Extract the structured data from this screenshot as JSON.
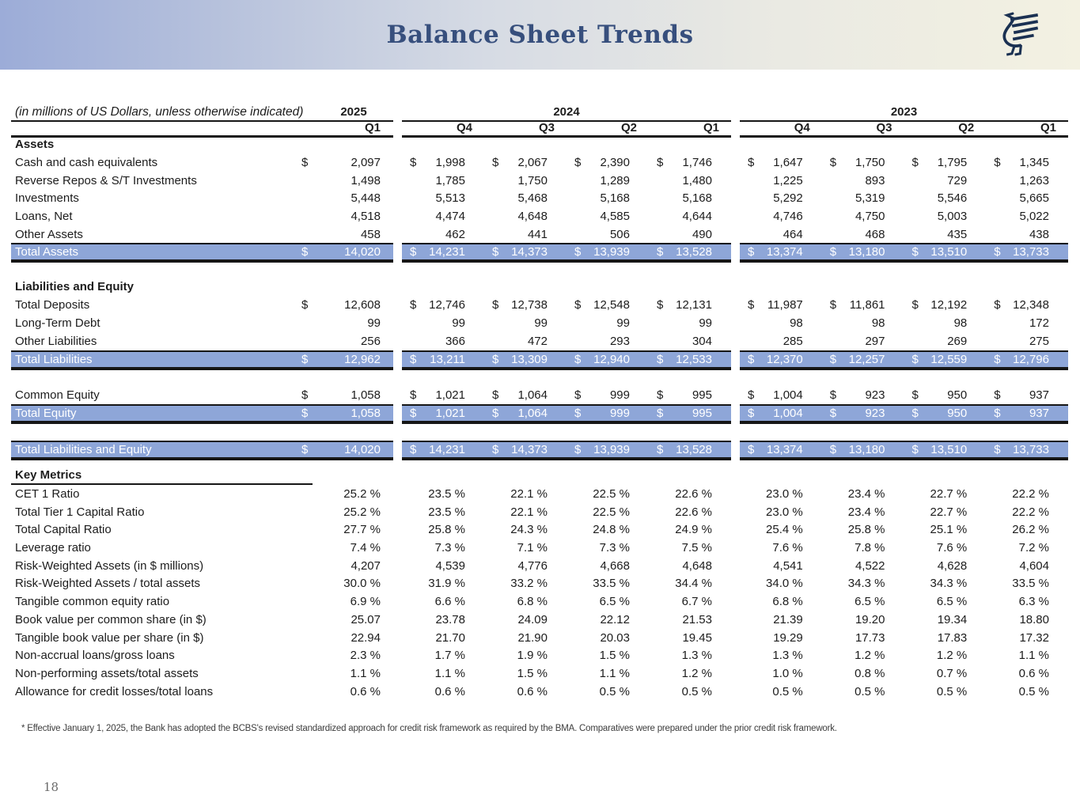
{
  "header": {
    "title": "Balance Sheet Trends",
    "logo": "griffin-bird-logo",
    "colors": {
      "title_text": "#374f7d",
      "banner_gradient_left": "#9cacd8",
      "banner_gradient_right": "#f3f1e2",
      "logo_navy": "#1b3152",
      "highlight_row_bg": "#8ea6d8",
      "highlight_row_text": "#ffffff",
      "rule_black": "#161616"
    }
  },
  "table": {
    "units_note": "(in millions of US Dollars, unless otherwise indicated)",
    "currency_symbol": "$",
    "year_groups": [
      {
        "year": "2025",
        "quarters": [
          "Q1"
        ]
      },
      {
        "year": "2024",
        "quarters": [
          "Q4",
          "Q3",
          "Q2",
          "Q1"
        ]
      },
      {
        "year": "2023",
        "quarters": [
          "Q4",
          "Q3",
          "Q2",
          "Q1"
        ]
      }
    ],
    "rows": [
      {
        "type": "section",
        "label": "Assets",
        "underline": false
      },
      {
        "type": "data",
        "label": "Cash and cash equivalents",
        "dollar": true,
        "values": [
          "2,097",
          "1,998",
          "2,067",
          "2,390",
          "1,746",
          "1,647",
          "1,750",
          "1,795",
          "1,345"
        ]
      },
      {
        "type": "data",
        "label": "Reverse Repos & S/T Investments",
        "dollar": false,
        "values": [
          "1,498",
          "1,785",
          "1,750",
          "1,289",
          "1,480",
          "1,225",
          "893",
          "729",
          "1,263"
        ]
      },
      {
        "type": "data",
        "label": "Investments",
        "dollar": false,
        "values": [
          "5,448",
          "5,513",
          "5,468",
          "5,168",
          "5,168",
          "5,292",
          "5,319",
          "5,546",
          "5,665"
        ]
      },
      {
        "type": "data",
        "label": "Loans, Net",
        "dollar": false,
        "values": [
          "4,518",
          "4,474",
          "4,648",
          "4,585",
          "4,644",
          "4,746",
          "4,750",
          "5,003",
          "5,022"
        ]
      },
      {
        "type": "data",
        "label": "Other Assets",
        "dollar": false,
        "values": [
          "458",
          "462",
          "441",
          "506",
          "490",
          "464",
          "468",
          "435",
          "438"
        ]
      },
      {
        "type": "total",
        "label": "Total Assets",
        "dollar": true,
        "values": [
          "14,020",
          "14,231",
          "14,373",
          "13,939",
          "13,528",
          "13,374",
          "13,180",
          "13,510",
          "13,733"
        ]
      },
      {
        "type": "spacer",
        "size": "md"
      },
      {
        "type": "section",
        "label": "Liabilities and Equity",
        "underline": false
      },
      {
        "type": "data",
        "label": "Total Deposits",
        "dollar": true,
        "values": [
          "12,608",
          "12,746",
          "12,738",
          "12,548",
          "12,131",
          "11,987",
          "11,861",
          "12,192",
          "12,348"
        ]
      },
      {
        "type": "data",
        "label": "Long-Term Debt",
        "dollar": false,
        "values": [
          "99",
          "99",
          "99",
          "99",
          "99",
          "98",
          "98",
          "98",
          "172"
        ]
      },
      {
        "type": "data",
        "label": "Other Liabilities",
        "dollar": false,
        "values": [
          "256",
          "366",
          "472",
          "293",
          "304",
          "285",
          "297",
          "269",
          "275"
        ]
      },
      {
        "type": "total",
        "label": "Total Liabilities",
        "dollar": true,
        "values": [
          "12,962",
          "13,211",
          "13,309",
          "12,940",
          "12,533",
          "12,370",
          "12,257",
          "12,559",
          "12,796"
        ]
      },
      {
        "type": "spacer",
        "size": "lg"
      },
      {
        "type": "data",
        "label": "Common Equity",
        "dollar": true,
        "values": [
          "1,058",
          "1,021",
          "1,064",
          "999",
          "995",
          "1,004",
          "923",
          "950",
          "937"
        ]
      },
      {
        "type": "total",
        "label": "Total Equity",
        "dollar": true,
        "values": [
          "1,058",
          "1,021",
          "1,064",
          "999",
          "995",
          "1,004",
          "923",
          "950",
          "937"
        ]
      },
      {
        "type": "spacer",
        "size": "lg"
      },
      {
        "type": "total",
        "label": "Total Liabilities and Equity",
        "dollar": true,
        "values": [
          "14,020",
          "14,231",
          "14,373",
          "13,939",
          "13,528",
          "13,374",
          "13,180",
          "13,510",
          "13,733"
        ]
      },
      {
        "type": "spacer",
        "size": "sm"
      },
      {
        "type": "section",
        "label": "Key Metrics",
        "underline": true
      },
      {
        "type": "data",
        "label": "CET 1 Ratio",
        "dollar": false,
        "values": [
          "25.2 %",
          "23.5 %",
          "22.1 %",
          "22.5 %",
          "22.6 %",
          "23.0 %",
          "23.4 %",
          "22.7 %",
          "22.2 %"
        ]
      },
      {
        "type": "data",
        "label": "Total Tier 1 Capital Ratio",
        "dollar": false,
        "values": [
          "25.2 %",
          "23.5 %",
          "22.1 %",
          "22.5 %",
          "22.6 %",
          "23.0 %",
          "23.4 %",
          "22.7 %",
          "22.2 %"
        ]
      },
      {
        "type": "data",
        "label": "Total Capital Ratio",
        "dollar": false,
        "values": [
          "27.7 %",
          "25.8 %",
          "24.3 %",
          "24.8 %",
          "24.9 %",
          "25.4 %",
          "25.8 %",
          "25.1 %",
          "26.2 %"
        ]
      },
      {
        "type": "data",
        "label": "Leverage ratio",
        "dollar": false,
        "values": [
          "7.4 %",
          "7.3 %",
          "7.1 %",
          "7.3 %",
          "7.5 %",
          "7.6 %",
          "7.8 %",
          "7.6 %",
          "7.2 %"
        ]
      },
      {
        "type": "data",
        "label": "Risk-Weighted Assets (in $ millions)",
        "dollar": false,
        "values": [
          "4,207",
          "4,539",
          "4,776",
          "4,668",
          "4,648",
          "4,541",
          "4,522",
          "4,628",
          "4,604"
        ]
      },
      {
        "type": "data",
        "label": "Risk-Weighted Assets / total assets",
        "dollar": false,
        "values": [
          "30.0 %",
          "31.9 %",
          "33.2 %",
          "33.5 %",
          "34.4 %",
          "34.0 %",
          "34.3 %",
          "34.3 %",
          "33.5 %"
        ]
      },
      {
        "type": "data",
        "label": "Tangible common equity ratio",
        "dollar": false,
        "values": [
          "6.9 %",
          "6.6 %",
          "6.8 %",
          "6.5 %",
          "6.7 %",
          "6.8 %",
          "6.5 %",
          "6.5 %",
          "6.3 %"
        ]
      },
      {
        "type": "data",
        "label": "Book value per common share (in $)",
        "dollar": false,
        "values": [
          "25.07",
          "23.78",
          "24.09",
          "22.12",
          "21.53",
          "21.39",
          "19.20",
          "19.34",
          "18.80"
        ]
      },
      {
        "type": "data",
        "label": "Tangible book value per share (in $)",
        "dollar": false,
        "values": [
          "22.94",
          "21.70",
          "21.90",
          "20.03",
          "19.45",
          "19.29",
          "17.73",
          "17.83",
          "17.32"
        ]
      },
      {
        "type": "data",
        "label": "Non-accrual loans/gross loans",
        "dollar": false,
        "values": [
          "2.3 %",
          "1.7 %",
          "1.9 %",
          "1.5 %",
          "1.3 %",
          "1.3 %",
          "1.2 %",
          "1.2 %",
          "1.1 %"
        ]
      },
      {
        "type": "data",
        "label": "Non-performing assets/total assets",
        "dollar": false,
        "values": [
          "1.1 %",
          "1.1 %",
          "1.5 %",
          "1.1 %",
          "1.2 %",
          "1.0 %",
          "0.8 %",
          "0.7 %",
          "0.6 %"
        ]
      },
      {
        "type": "data",
        "label": "Allowance for credit losses/total loans",
        "dollar": false,
        "values": [
          "0.6 %",
          "0.6 %",
          "0.6 %",
          "0.5 %",
          "0.5 %",
          "0.5 %",
          "0.5 %",
          "0.5 %",
          "0.5 %"
        ]
      }
    ]
  },
  "footnote": "* Effective January 1, 2025, the Bank has adopted the BCBS's revised standardized approach for credit risk framework as required by the BMA. Comparatives were prepared under the prior credit risk framework.",
  "page_number": "18"
}
